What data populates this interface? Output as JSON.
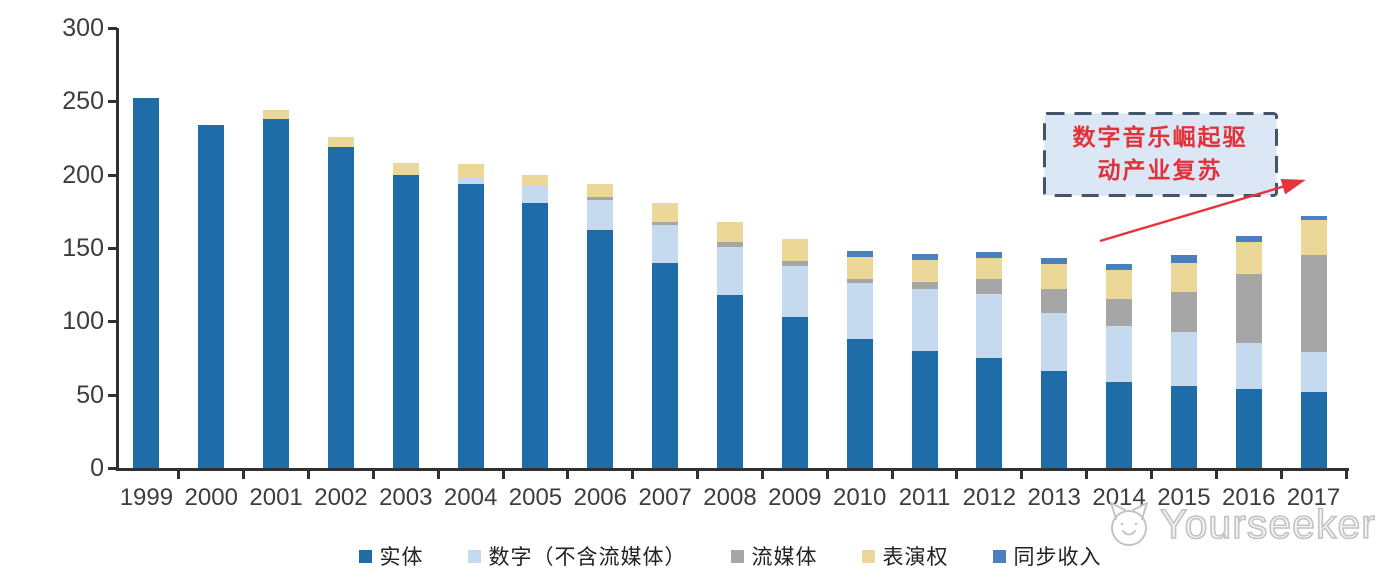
{
  "chart_data": {
    "type": "bar",
    "stacked": true,
    "categories": [
      "1999",
      "2000",
      "2001",
      "2002",
      "2003",
      "2004",
      "2005",
      "2006",
      "2007",
      "2008",
      "2009",
      "2010",
      "2011",
      "2012",
      "2013",
      "2014",
      "2015",
      "2016",
      "2017"
    ],
    "series": [
      {
        "key": "physical",
        "name": "实体",
        "color": "#1E6CA8",
        "values": [
          252,
          234,
          238,
          219,
          200,
          194,
          181,
          162,
          140,
          118,
          103,
          88,
          80,
          75,
          66,
          59,
          56,
          54,
          52
        ]
      },
      {
        "key": "digital-excl-streaming",
        "name": "数字（不含流媒体）",
        "color": "#C5D9EF",
        "values": [
          0,
          0,
          0,
          0,
          0,
          4,
          11,
          21,
          26,
          33,
          35,
          38,
          42,
          44,
          40,
          38,
          37,
          31,
          27
        ]
      },
      {
        "key": "streaming",
        "name": "流媒体",
        "color": "#A6A6A6",
        "values": [
          0,
          0,
          0,
          0,
          0,
          0,
          0,
          2,
          2,
          3,
          3,
          3,
          5,
          10,
          16,
          18,
          27,
          47,
          66
        ]
      },
      {
        "key": "performance-rights",
        "name": "表演权",
        "color": "#EBD898",
        "values": [
          0,
          0,
          6,
          7,
          8,
          9,
          8,
          9,
          13,
          14,
          15,
          15,
          15,
          14,
          17,
          20,
          20,
          22,
          24
        ]
      },
      {
        "key": "sync",
        "name": "同步收入",
        "color": "#4A80C0",
        "values": [
          0,
          0,
          0,
          0,
          0,
          0,
          0,
          0,
          0,
          0,
          0,
          4,
          4,
          4,
          4,
          4,
          5,
          4,
          3
        ]
      }
    ],
    "ylim": [
      0,
      300
    ],
    "yticks": [
      0,
      50,
      100,
      150,
      200,
      250,
      300
    ],
    "xlabel": "",
    "ylabel": "",
    "title": "",
    "grid": false,
    "legend_position": "bottom"
  },
  "annotation": {
    "text": "数字音乐崛起驱动产业复苏",
    "line1": "数字音乐崛起驱",
    "line2": "动产业复苏",
    "text_color": "#E23139",
    "box_fill": "#DBE7F4",
    "box_border": "#44546A",
    "arrow_color": "#E8323C"
  },
  "watermark": {
    "brand": "Yourseeker",
    "logo": "cat-logo-icon",
    "color": "#C3C3C3"
  },
  "axis": {
    "color": "#303030",
    "label_color": "#3D3D3D"
  }
}
